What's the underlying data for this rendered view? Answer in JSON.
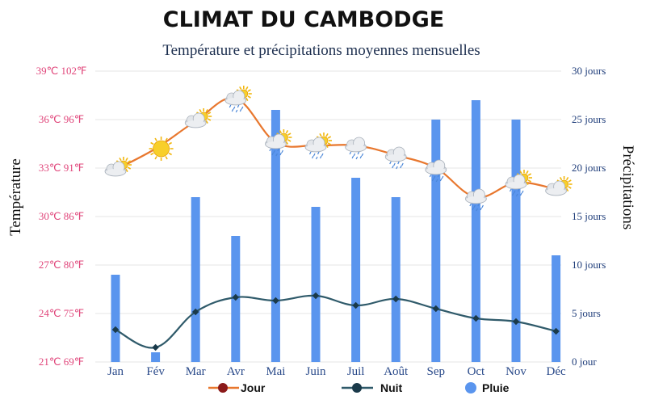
{
  "chart_data": {
    "type": "bar+line",
    "title": "CLIMAT DU CAMBODGE",
    "subtitle": "Température et précipitations moyennes mensuelles",
    "ylabel_left": "Température",
    "ylabel_right": "Précipitations",
    "categories": [
      "Jan",
      "Fév",
      "Mar",
      "Avr",
      "Mai",
      "Juin",
      "Juil",
      "Août",
      "Sep",
      "Oct",
      "Nov",
      "Déc"
    ],
    "yticks_left": [
      {
        "value": 21,
        "label": "21℃ 69℉"
      },
      {
        "value": 24,
        "label": "24℃ 75℉"
      },
      {
        "value": 27,
        "label": "27℃ 80℉"
      },
      {
        "value": 30,
        "label": "30℃ 86℉"
      },
      {
        "value": 33,
        "label": "33℃ 91℉"
      },
      {
        "value": 36,
        "label": "36℃ 96℉"
      },
      {
        "value": 39,
        "label": "39℃ 102℉"
      }
    ],
    "yticks_right": [
      {
        "value": 0,
        "label": "0 jour"
      },
      {
        "value": 5,
        "label": "5 jours"
      },
      {
        "value": 10,
        "label": "10 jours"
      },
      {
        "value": 15,
        "label": "15 jours"
      },
      {
        "value": 20,
        "label": "20 jours"
      },
      {
        "value": 25,
        "label": "25 jours"
      },
      {
        "value": 30,
        "label": "30 jours"
      }
    ],
    "ylim_left": [
      21,
      39
    ],
    "ylim_right": [
      0,
      30
    ],
    "grid": true,
    "legend_position": "bottom",
    "series": [
      {
        "name": "Jour",
        "kind": "line",
        "axis": "left",
        "color": "#e8772e",
        "marker_color": "#8b1a1a",
        "values": [
          32.9,
          34.2,
          35.9,
          37.3,
          34.6,
          34.4,
          34.4,
          33.8,
          33.0,
          31.2,
          32.1,
          31.7
        ]
      },
      {
        "name": "Nuit",
        "kind": "line",
        "axis": "left",
        "color": "#2f5a6a",
        "marker_color": "#1a3a4a",
        "values": [
          23.0,
          21.9,
          24.1,
          25.0,
          24.8,
          25.1,
          24.5,
          24.9,
          24.3,
          23.7,
          23.5,
          22.9
        ]
      },
      {
        "name": "Pluie",
        "kind": "bar",
        "axis": "right",
        "color": "#5a95ee",
        "values": [
          9,
          1,
          17,
          13,
          26,
          16,
          19,
          17,
          25,
          27,
          25,
          11
        ]
      }
    ],
    "weather_icons": [
      "partly-cloudy-icon",
      "sun-icon",
      "partly-cloudy-icon",
      "partly-cloudy-rain-icon",
      "partly-cloudy-rain-icon",
      "partly-cloudy-rain-icon",
      "cloud-rain-icon",
      "cloud-rain-icon",
      "cloud-rain-icon",
      "cloud-rain-icon",
      "partly-cloudy-rain-icon",
      "partly-cloudy-icon"
    ]
  }
}
